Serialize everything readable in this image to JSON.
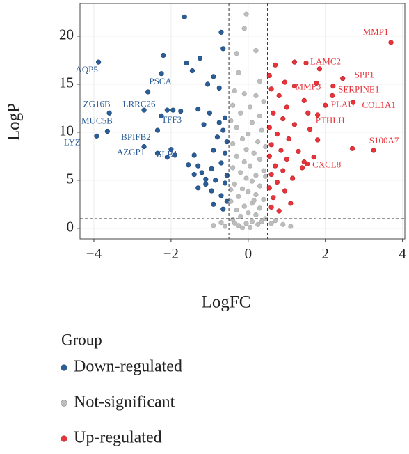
{
  "chart_data": {
    "type": "scatter",
    "xlabel": "LogFC",
    "ylabel": "LogP",
    "legend_title": "Group",
    "xlim": [
      -4.36,
      4.06
    ],
    "ylim": [
      -1.1,
      23.4
    ],
    "xticks": [
      {
        "value": -4,
        "label": "−4"
      },
      {
        "value": -2,
        "label": "−2"
      },
      0,
      2,
      4
    ],
    "yticks": [
      0,
      5,
      10,
      15,
      20
    ],
    "grid": true,
    "vlines": [
      -0.5,
      0.5
    ],
    "hlines": [
      1
    ],
    "series": [
      {
        "name": "Down-regulated",
        "color": "#2b5d97",
        "points": [
          {
            "x": -3.88,
            "y": 17.3,
            "label": "AQP5"
          },
          {
            "x": -2.6,
            "y": 14.2,
            "label": "PSCA"
          },
          {
            "x": -3.6,
            "y": 12.0,
            "label": "ZG16B"
          },
          {
            "x": -2.25,
            "y": 11.7,
            "label": "LRRC26"
          },
          {
            "x": -3.65,
            "y": 10.1,
            "label": "MUC5B"
          },
          {
            "x": -1.95,
            "y": 12.3,
            "label": "TFF3"
          },
          {
            "x": -2.35,
            "y": 10.2,
            "label": "BPIFB2"
          },
          {
            "x": -3.93,
            "y": 9.6,
            "label": "LYZ"
          },
          {
            "x": -2.7,
            "y": 8.5,
            "label": "AZGP1"
          },
          {
            "x": -2.1,
            "y": 7.4,
            "label": "SLB1"
          },
          {
            "x": -1.65,
            "y": 22.0
          },
          {
            "x": -0.7,
            "y": 20.4
          },
          {
            "x": -0.65,
            "y": 18.7
          },
          {
            "x": -2.2,
            "y": 18.0
          },
          {
            "x": -1.25,
            "y": 17.7
          },
          {
            "x": -1.6,
            "y": 17.2
          },
          {
            "x": -1.45,
            "y": 16.4
          },
          {
            "x": -2.25,
            "y": 16.1
          },
          {
            "x": -0.9,
            "y": 15.8
          },
          {
            "x": -1.05,
            "y": 15.0
          },
          {
            "x": -0.75,
            "y": 14.6
          },
          {
            "x": -2.1,
            "y": 12.3
          },
          {
            "x": -1.75,
            "y": 12.2
          },
          {
            "x": -1.3,
            "y": 12.4
          },
          {
            "x": -1.0,
            "y": 12.0
          },
          {
            "x": -0.6,
            "y": 11.5
          },
          {
            "x": -0.75,
            "y": 11.0
          },
          {
            "x": -1.15,
            "y": 10.8
          },
          {
            "x": -2.7,
            "y": 12.3
          },
          {
            "x": -0.65,
            "y": 10.2
          },
          {
            "x": -0.8,
            "y": 9.5
          },
          {
            "x": -0.55,
            "y": 9.0
          },
          {
            "x": -2.0,
            "y": 8.2
          },
          {
            "x": -1.4,
            "y": 7.6
          },
          {
            "x": -1.9,
            "y": 7.6
          },
          {
            "x": -0.9,
            "y": 8.1
          },
          {
            "x": -0.6,
            "y": 7.8
          },
          {
            "x": -1.55,
            "y": 6.6
          },
          {
            "x": -1.3,
            "y": 6.5
          },
          {
            "x": -0.95,
            "y": 6.2
          },
          {
            "x": -0.7,
            "y": 6.8
          },
          {
            "x": -0.55,
            "y": 5.5
          },
          {
            "x": -1.4,
            "y": 5.6
          },
          {
            "x": -1.1,
            "y": 5.1
          },
          {
            "x": -0.85,
            "y": 5.0
          },
          {
            "x": -0.6,
            "y": 4.7
          },
          {
            "x": -1.3,
            "y": 4.2
          },
          {
            "x": -0.95,
            "y": 3.9
          },
          {
            "x": -0.7,
            "y": 3.4
          },
          {
            "x": -0.55,
            "y": 2.8
          },
          {
            "x": -0.9,
            "y": 2.5
          },
          {
            "x": -0.65,
            "y": 2.0
          },
          {
            "x": -1.1,
            "y": 4.6
          },
          {
            "x": -2.35,
            "y": 7.8
          },
          {
            "x": -1.2,
            "y": 5.8
          }
        ]
      },
      {
        "name": "Not-significant",
        "color": "#bdbdbd",
        "points": [
          {
            "x": -0.05,
            "y": 22.3
          },
          {
            "x": -0.1,
            "y": 20.8
          },
          {
            "x": -0.3,
            "y": 18.2
          },
          {
            "x": 0.2,
            "y": 18.5
          },
          {
            "x": -0.25,
            "y": 16.2
          },
          {
            "x": 0.3,
            "y": 15.3
          },
          {
            "x": -0.35,
            "y": 14.3
          },
          {
            "x": -0.1,
            "y": 14.0
          },
          {
            "x": 0.2,
            "y": 13.8
          },
          {
            "x": 0.4,
            "y": 13.2
          },
          {
            "x": -0.4,
            "y": 12.8
          },
          {
            "x": 0.05,
            "y": 12.6
          },
          {
            "x": -0.2,
            "y": 12.0
          },
          {
            "x": 0.3,
            "y": 11.7
          },
          {
            "x": -0.45,
            "y": 11.2
          },
          {
            "x": 0.1,
            "y": 11.0
          },
          {
            "x": -0.3,
            "y": 10.5
          },
          {
            "x": 0.35,
            "y": 10.2
          },
          {
            "x": 0.0,
            "y": 9.8
          },
          {
            "x": -0.15,
            "y": 9.3
          },
          {
            "x": 0.25,
            "y": 9.0
          },
          {
            "x": -0.4,
            "y": 8.8
          },
          {
            "x": 0.45,
            "y": 8.5
          },
          {
            "x": -0.05,
            "y": 8.2
          },
          {
            "x": 0.15,
            "y": 7.8
          },
          {
            "x": -0.3,
            "y": 7.5
          },
          {
            "x": 0.3,
            "y": 7.2
          },
          {
            "x": -0.1,
            "y": 6.9
          },
          {
            "x": 0.05,
            "y": 6.5
          },
          {
            "x": -0.4,
            "y": 6.3
          },
          {
            "x": 0.4,
            "y": 6.0
          },
          {
            "x": -0.2,
            "y": 5.8
          },
          {
            "x": 0.2,
            "y": 5.5
          },
          {
            "x": -0.05,
            "y": 5.2
          },
          {
            "x": 0.1,
            "y": 4.9
          },
          {
            "x": -0.35,
            "y": 4.6
          },
          {
            "x": 0.3,
            "y": 4.4
          },
          {
            "x": -0.15,
            "y": 4.1
          },
          {
            "x": 0.0,
            "y": 3.8
          },
          {
            "x": 0.2,
            "y": 3.5
          },
          {
            "x": -0.25,
            "y": 3.3
          },
          {
            "x": 0.4,
            "y": 3.0
          },
          {
            "x": -0.45,
            "y": 2.8
          },
          {
            "x": 0.1,
            "y": 2.6
          },
          {
            "x": -0.1,
            "y": 2.3
          },
          {
            "x": 0.3,
            "y": 2.1
          },
          {
            "x": -0.3,
            "y": 1.9
          },
          {
            "x": 0.0,
            "y": 1.6
          },
          {
            "x": 0.2,
            "y": 1.4
          },
          {
            "x": -0.2,
            "y": 1.2
          },
          {
            "x": 0.45,
            "y": 1.0
          },
          {
            "x": -0.4,
            "y": 0.9
          },
          {
            "x": 0.1,
            "y": 0.7
          },
          {
            "x": -0.05,
            "y": 0.5
          },
          {
            "x": 0.25,
            "y": 0.4
          },
          {
            "x": -0.25,
            "y": 0.3
          },
          {
            "x": 0.05,
            "y": 0.1
          },
          {
            "x": 0.7,
            "y": 0.8
          },
          {
            "x": -0.7,
            "y": 0.6
          },
          {
            "x": 0.9,
            "y": 0.4
          },
          {
            "x": -0.9,
            "y": 0.3
          },
          {
            "x": 1.1,
            "y": 0.2
          },
          {
            "x": -0.6,
            "y": 0.2
          },
          {
            "x": 0.6,
            "y": 0.5
          },
          {
            "x": -0.15,
            "y": 0.05
          },
          {
            "x": 0.35,
            "y": 0.7
          },
          {
            "x": -0.35,
            "y": 0.55
          },
          {
            "x": 0.15,
            "y": 2.9
          },
          {
            "x": -0.45,
            "y": 4.0
          },
          {
            "x": 0.45,
            "y": 5.4
          }
        ]
      },
      {
        "name": "Up-regulated",
        "color": "#e8333a",
        "points": [
          {
            "x": 3.7,
            "y": 19.35,
            "label": "MMP1"
          },
          {
            "x": 1.5,
            "y": 17.2,
            "label": "LAMC2"
          },
          {
            "x": 2.45,
            "y": 15.6,
            "label": "SPP1"
          },
          {
            "x": 1.77,
            "y": 15.1,
            "label": "MMP3"
          },
          {
            "x": 2.18,
            "y": 13.8,
            "label": "SERPINE1"
          },
          {
            "x": 2.0,
            "y": 12.8,
            "label": "PLAU"
          },
          {
            "x": 2.72,
            "y": 13.1,
            "label": "COL1A1"
          },
          {
            "x": 1.8,
            "y": 11.8,
            "label": "PTHLH"
          },
          {
            "x": 3.25,
            "y": 8.1,
            "label": "S100A7"
          },
          {
            "x": 1.53,
            "y": 6.7,
            "label": "CXCL8"
          },
          {
            "x": 0.7,
            "y": 17.0
          },
          {
            "x": 0.95,
            "y": 15.2
          },
          {
            "x": 0.6,
            "y": 14.5
          },
          {
            "x": 1.2,
            "y": 14.8
          },
          {
            "x": 1.45,
            "y": 13.3
          },
          {
            "x": 0.8,
            "y": 13.8
          },
          {
            "x": 1.0,
            "y": 12.6
          },
          {
            "x": 0.65,
            "y": 12.0
          },
          {
            "x": 1.55,
            "y": 12.0
          },
          {
            "x": 0.9,
            "y": 11.4
          },
          {
            "x": 1.2,
            "y": 10.8
          },
          {
            "x": 0.55,
            "y": 10.5
          },
          {
            "x": 0.75,
            "y": 9.8
          },
          {
            "x": 1.6,
            "y": 10.3
          },
          {
            "x": 1.05,
            "y": 9.3
          },
          {
            "x": 0.6,
            "y": 8.7
          },
          {
            "x": 0.85,
            "y": 8.1
          },
          {
            "x": 1.3,
            "y": 8.0
          },
          {
            "x": 0.55,
            "y": 7.5
          },
          {
            "x": 1.0,
            "y": 7.2
          },
          {
            "x": 1.8,
            "y": 9.2
          },
          {
            "x": 0.7,
            "y": 6.5
          },
          {
            "x": 1.4,
            "y": 6.3
          },
          {
            "x": 0.9,
            "y": 6.0
          },
          {
            "x": 0.6,
            "y": 5.6
          },
          {
            "x": 1.15,
            "y": 5.2
          },
          {
            "x": 0.75,
            "y": 4.8
          },
          {
            "x": 0.55,
            "y": 4.2
          },
          {
            "x": 0.95,
            "y": 3.9
          },
          {
            "x": 0.65,
            "y": 3.2
          },
          {
            "x": 1.1,
            "y": 2.6
          },
          {
            "x": 0.6,
            "y": 2.2
          },
          {
            "x": 0.8,
            "y": 1.8
          },
          {
            "x": 1.7,
            "y": 7.4
          },
          {
            "x": 2.2,
            "y": 14.8
          },
          {
            "x": 1.85,
            "y": 16.6
          },
          {
            "x": 1.2,
            "y": 17.3
          },
          {
            "x": 0.55,
            "y": 15.9
          },
          {
            "x": 2.7,
            "y": 8.3
          },
          {
            "x": 1.45,
            "y": 6.9
          }
        ]
      }
    ]
  }
}
